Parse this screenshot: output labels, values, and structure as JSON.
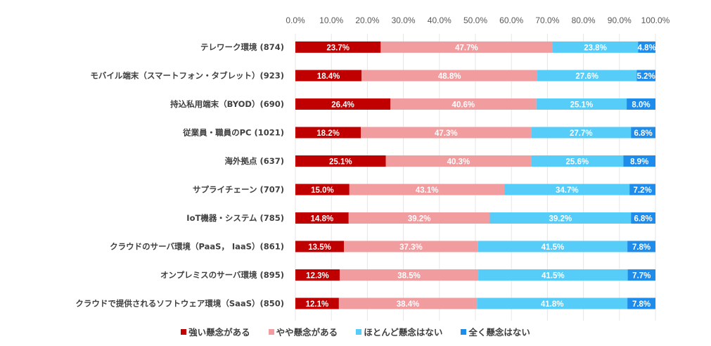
{
  "chart_data": {
    "type": "bar",
    "orientation": "horizontal",
    "stacked": "percent",
    "title": "",
    "xlabel": "",
    "ylabel": "",
    "xlim": [
      0,
      100
    ],
    "x_ticks": [
      "0.0%",
      "10.0%",
      "20.0%",
      "30.0%",
      "40.0%",
      "50.0%",
      "60.0%",
      "70.0%",
      "80.0%",
      "90.0%",
      "100.0%"
    ],
    "x_axis_position": "top",
    "grid": true,
    "legend_position": "bottom",
    "categories": [
      "テレワーク環境 (874)",
      "モバイル端末（スマートフォン・タブレット）(923)",
      "持込私用端末（BYOD）(690)",
      "従業員・職員のPC (1021)",
      "海外拠点 (637)",
      "サプライチェーン (707)",
      "IoT機器・システム (785)",
      "クラウドのサーバ環境（PaaS， IaaS）(861)",
      "オンプレミスのサーバ環境 (895)",
      "クラウドで提供されるソフトウェア環境（SaaS）(850)"
    ],
    "series": [
      {
        "name": "強い懸念がある",
        "color": "#C00000",
        "values": [
          23.7,
          18.4,
          26.4,
          18.2,
          25.1,
          15.0,
          14.8,
          13.5,
          12.3,
          12.1
        ]
      },
      {
        "name": "やや懸念がある",
        "color": "#F19C9F",
        "values": [
          47.7,
          48.8,
          40.6,
          47.3,
          40.3,
          43.1,
          39.2,
          37.3,
          38.5,
          38.4
        ]
      },
      {
        "name": "ほとんど懸念はない",
        "color": "#56CCF9",
        "values": [
          23.8,
          27.6,
          25.1,
          27.7,
          25.6,
          34.7,
          39.2,
          41.5,
          41.5,
          41.8
        ]
      },
      {
        "name": "全く懸念はない",
        "color": "#1E8CEB",
        "values": [
          4.8,
          5.2,
          8.0,
          6.8,
          8.9,
          7.2,
          6.8,
          7.8,
          7.7,
          7.8
        ]
      }
    ],
    "value_format": "{v}%"
  }
}
